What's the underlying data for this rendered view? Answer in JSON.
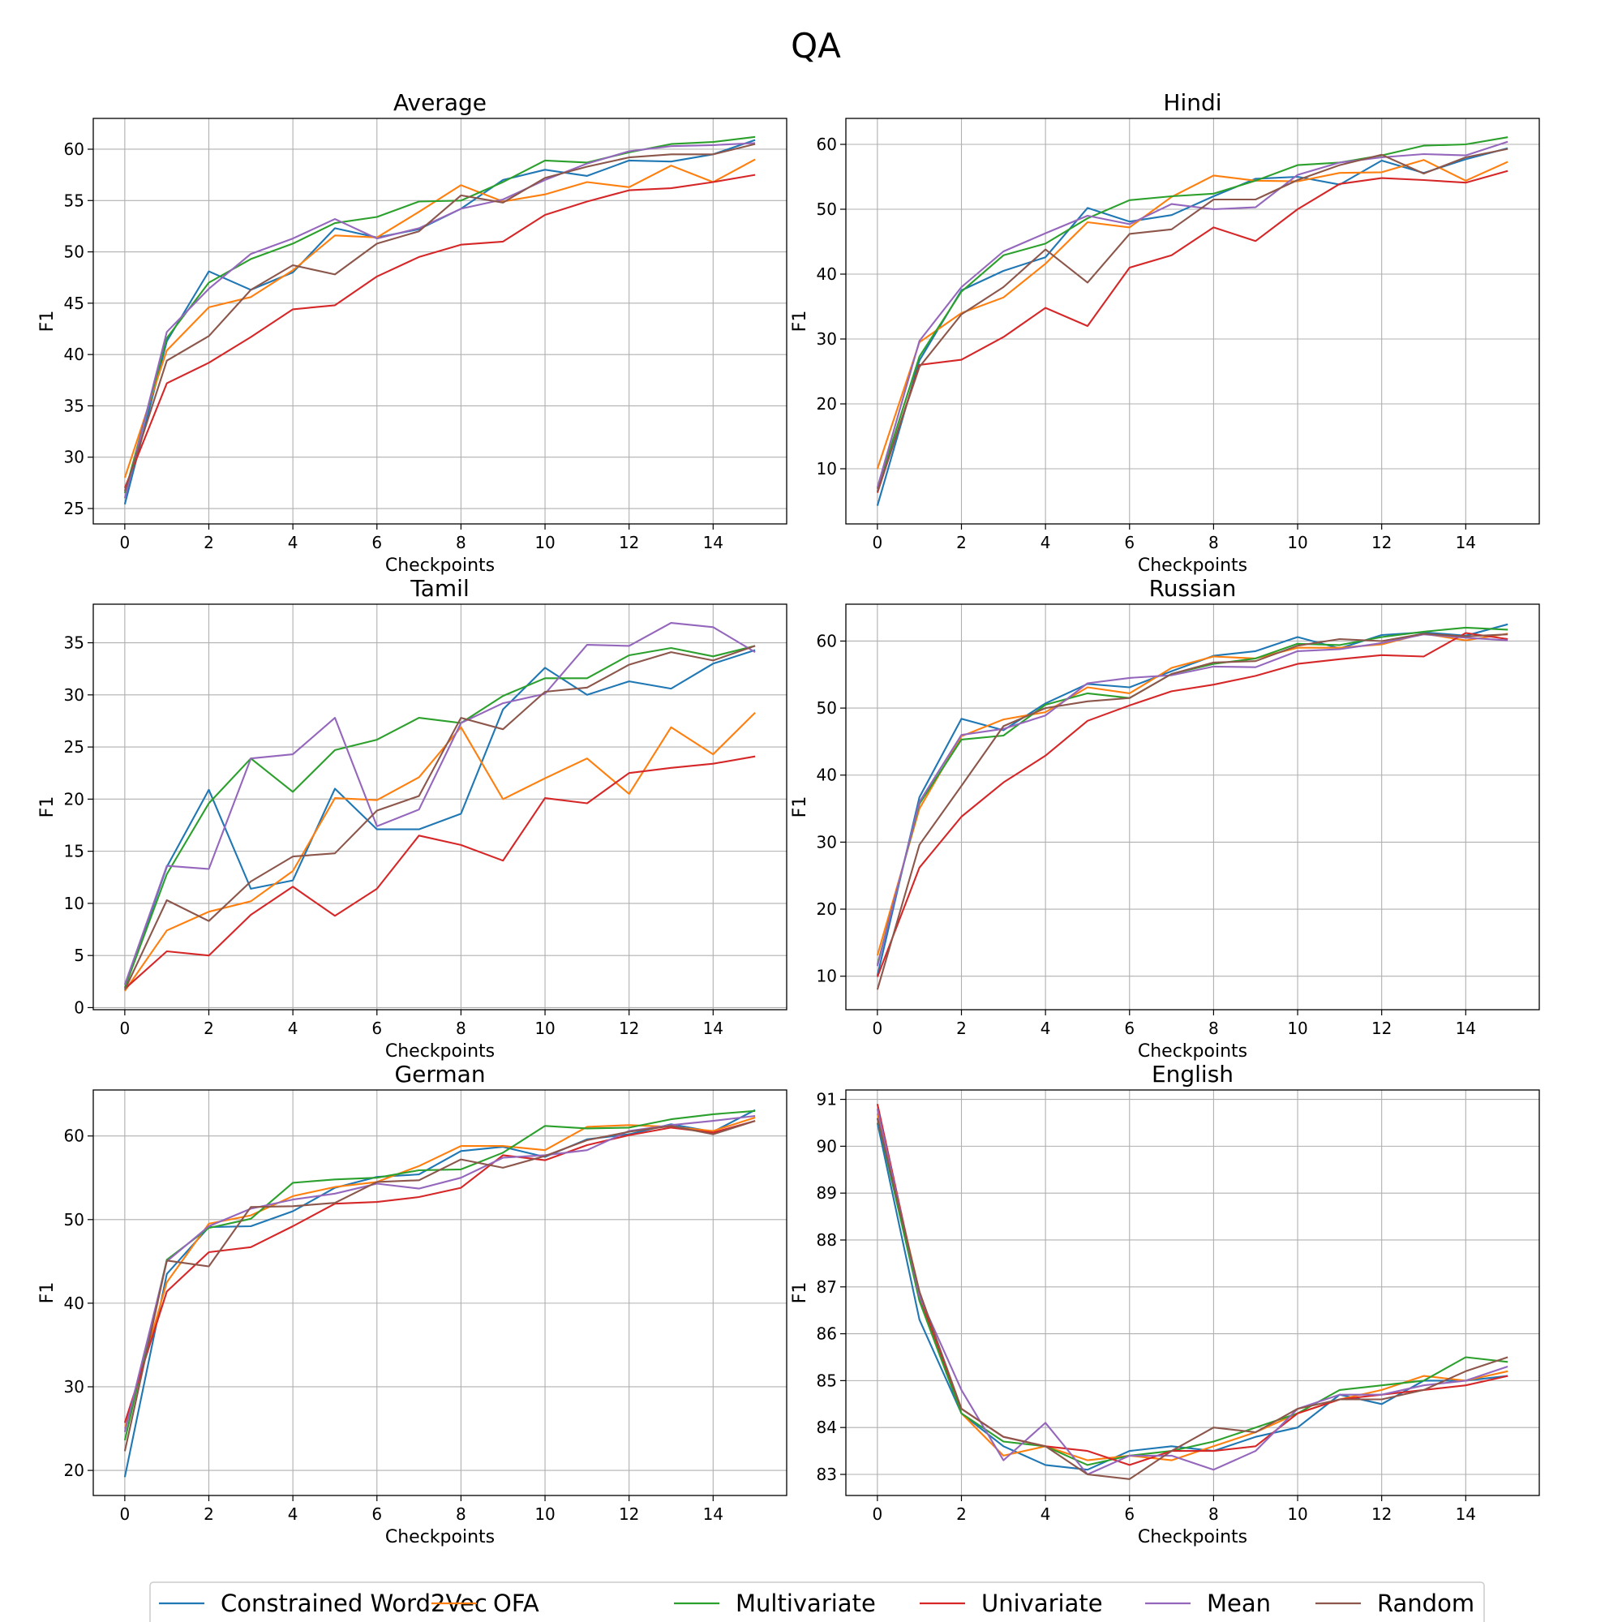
{
  "figure": {
    "title": "QA"
  },
  "legend": [
    {
      "name": "Constrained Word2Vec",
      "color": "#1f77b4"
    },
    {
      "name": "OFA",
      "color": "#ff7f0e"
    },
    {
      "name": "Multivariate",
      "color": "#2ca02c"
    },
    {
      "name": "Univariate",
      "color": "#d62728"
    },
    {
      "name": "Mean",
      "color": "#9467bd"
    },
    {
      "name": "Random",
      "color": "#8c564b"
    }
  ],
  "chart_data": [
    {
      "type": "line",
      "title": "Average",
      "xlabel": "Checkpoints",
      "ylabel": "F1",
      "x": [
        0,
        1,
        2,
        3,
        4,
        5,
        6,
        7,
        8,
        9,
        10,
        11,
        12,
        13,
        14,
        15
      ],
      "xlim": [
        -0.75,
        15.75
      ],
      "ylim": [
        23.5,
        63.0
      ],
      "xticks": [
        0,
        2,
        4,
        6,
        8,
        10,
        12,
        14
      ],
      "yticks": [
        25,
        30,
        35,
        40,
        45,
        50,
        55,
        60
      ],
      "series": [
        {
          "name": "Constrained Word2Vec",
          "values": [
            25.4,
            41.3,
            48.1,
            46.3,
            48.0,
            52.3,
            51.4,
            52.2,
            54.2,
            57.0,
            58.0,
            57.4,
            58.9,
            58.8,
            59.5,
            60.9
          ]
        },
        {
          "name": "OFA",
          "values": [
            28.0,
            40.4,
            44.6,
            45.6,
            48.2,
            51.6,
            51.4,
            53.9,
            56.5,
            54.9,
            55.6,
            56.8,
            56.3,
            58.4,
            56.8,
            59.0
          ]
        },
        {
          "name": "Multivariate",
          "values": [
            26.5,
            41.6,
            47.0,
            49.3,
            50.8,
            52.8,
            53.4,
            54.9,
            55.0,
            56.8,
            58.9,
            58.7,
            59.7,
            60.5,
            60.7,
            61.2
          ]
        },
        {
          "name": "Univariate",
          "values": [
            27.0,
            37.2,
            39.2,
            41.7,
            44.4,
            44.8,
            47.6,
            49.5,
            50.7,
            51.0,
            53.6,
            54.9,
            56.0,
            56.2,
            56.8,
            57.5
          ]
        },
        {
          "name": "Mean",
          "values": [
            26.0,
            42.2,
            46.4,
            49.8,
            51.3,
            53.2,
            51.3,
            52.3,
            54.2,
            55.1,
            57.0,
            58.6,
            59.8,
            60.3,
            60.4,
            60.6
          ]
        },
        {
          "name": "Random",
          "values": [
            26.7,
            39.4,
            41.8,
            46.3,
            48.7,
            47.8,
            50.8,
            52.0,
            55.5,
            54.8,
            57.2,
            58.3,
            59.2,
            59.5,
            59.5,
            60.5
          ]
        }
      ]
    },
    {
      "type": "line",
      "title": "Hindi",
      "xlabel": "Checkpoints",
      "ylabel": "F1",
      "x": [
        0,
        1,
        2,
        3,
        4,
        5,
        6,
        7,
        8,
        9,
        10,
        11,
        12,
        13,
        14,
        15
      ],
      "xlim": [
        -0.75,
        15.75
      ],
      "ylim": [
        1.5,
        64.0
      ],
      "xticks": [
        0,
        2,
        4,
        6,
        8,
        10,
        12,
        14
      ],
      "yticks": [
        10,
        20,
        30,
        40,
        50,
        60
      ],
      "series": [
        {
          "name": "Constrained Word2Vec",
          "values": [
            4.3,
            26.7,
            37.5,
            40.5,
            42.6,
            50.2,
            48.1,
            49.1,
            52.0,
            54.7,
            55.0,
            53.8,
            57.5,
            55.6,
            57.7,
            59.4
          ]
        },
        {
          "name": "OFA",
          "values": [
            10.0,
            29.5,
            34.0,
            36.4,
            41.6,
            48.0,
            47.2,
            51.9,
            55.2,
            54.4,
            54.3,
            55.6,
            55.7,
            57.6,
            54.4,
            57.3
          ]
        },
        {
          "name": "Multivariate",
          "values": [
            6.9,
            27.3,
            37.3,
            42.9,
            44.7,
            48.6,
            51.4,
            52.0,
            52.4,
            54.4,
            56.8,
            57.2,
            58.3,
            59.8,
            60.0,
            61.1
          ]
        },
        {
          "name": "Univariate",
          "values": [
            6.3,
            26.0,
            26.8,
            30.3,
            34.8,
            32.0,
            41.0,
            42.9,
            47.2,
            45.1,
            50.0,
            53.9,
            54.8,
            54.5,
            54.1,
            55.9
          ]
        },
        {
          "name": "Mean",
          "values": [
            7.1,
            29.7,
            38.0,
            43.5,
            46.3,
            49.0,
            47.7,
            50.8,
            50.0,
            50.3,
            55.3,
            57.2,
            58.0,
            58.5,
            58.3,
            60.4
          ]
        },
        {
          "name": "Random",
          "values": [
            6.5,
            25.7,
            33.8,
            38.0,
            43.8,
            38.7,
            46.2,
            46.9,
            51.5,
            51.5,
            54.5,
            56.8,
            58.4,
            55.5,
            58.0,
            59.3
          ]
        }
      ]
    },
    {
      "type": "line",
      "title": "Tamil",
      "xlabel": "Checkpoints",
      "ylabel": "F1",
      "x": [
        0,
        1,
        2,
        3,
        4,
        5,
        6,
        7,
        8,
        9,
        10,
        11,
        12,
        13,
        14,
        15
      ],
      "xlim": [
        -0.75,
        15.75
      ],
      "ylim": [
        -0.2,
        38.7
      ],
      "xticks": [
        0,
        2,
        4,
        6,
        8,
        10,
        12,
        14
      ],
      "yticks": [
        0,
        5,
        10,
        15,
        20,
        25,
        30,
        35
      ],
      "series": [
        {
          "name": "Constrained Word2Vec",
          "values": [
            1.9,
            13.5,
            20.9,
            11.4,
            12.2,
            21.0,
            17.1,
            17.1,
            18.6,
            28.6,
            32.6,
            30.0,
            31.3,
            30.6,
            33.0,
            34.3
          ]
        },
        {
          "name": "OFA",
          "values": [
            1.6,
            7.4,
            9.2,
            10.2,
            13.1,
            20.1,
            19.9,
            22.1,
            26.9,
            20.0,
            22.0,
            23.9,
            20.5,
            26.9,
            24.3,
            28.3
          ]
        },
        {
          "name": "Multivariate",
          "values": [
            1.9,
            12.8,
            19.6,
            23.9,
            20.7,
            24.7,
            25.7,
            27.8,
            27.3,
            29.9,
            31.6,
            31.6,
            33.8,
            34.5,
            33.7,
            34.7
          ]
        },
        {
          "name": "Univariate",
          "values": [
            1.8,
            5.4,
            5.0,
            8.9,
            11.6,
            8.8,
            11.4,
            16.5,
            15.6,
            14.1,
            20.1,
            19.6,
            22.5,
            23.0,
            23.4,
            24.1
          ]
        },
        {
          "name": "Mean",
          "values": [
            2.2,
            13.6,
            13.3,
            23.9,
            24.3,
            27.8,
            17.4,
            19.0,
            27.3,
            29.2,
            30.1,
            34.8,
            34.7,
            36.9,
            36.5,
            34.1
          ]
        },
        {
          "name": "Random",
          "values": [
            1.7,
            10.3,
            8.3,
            12.1,
            14.5,
            14.8,
            18.9,
            20.3,
            27.8,
            26.7,
            30.3,
            30.7,
            32.9,
            34.1,
            33.3,
            34.7
          ]
        }
      ]
    },
    {
      "type": "line",
      "title": "Russian",
      "xlabel": "Checkpoints",
      "ylabel": "F1",
      "x": [
        0,
        1,
        2,
        3,
        4,
        5,
        6,
        7,
        8,
        9,
        10,
        11,
        12,
        13,
        14,
        15
      ],
      "xlim": [
        -0.75,
        15.75
      ],
      "ylim": [
        5.0,
        65.5
      ],
      "xticks": [
        0,
        2,
        4,
        6,
        8,
        10,
        12,
        14
      ],
      "yticks": [
        10,
        20,
        30,
        40,
        50,
        60
      ],
      "series": [
        {
          "name": "Constrained Word2Vec",
          "values": [
            10.1,
            36.7,
            48.4,
            46.7,
            50.7,
            53.6,
            53.1,
            55.5,
            57.8,
            58.5,
            60.6,
            58.9,
            60.9,
            61.3,
            60.8,
            62.5
          ]
        },
        {
          "name": "OFA",
          "values": [
            13.1,
            35.0,
            45.8,
            48.3,
            49.4,
            53.1,
            52.2,
            56.0,
            57.7,
            57.4,
            59.0,
            59.0,
            59.5,
            61.1,
            60.1,
            61.1
          ]
        },
        {
          "name": "Multivariate",
          "values": [
            11.7,
            35.7,
            45.3,
            45.9,
            50.5,
            52.2,
            51.5,
            55.1,
            56.6,
            57.4,
            59.6,
            59.4,
            60.6,
            61.4,
            62.0,
            61.7
          ]
        },
        {
          "name": "Univariate",
          "values": [
            9.9,
            26.2,
            33.8,
            38.9,
            42.9,
            48.1,
            50.4,
            52.5,
            53.5,
            54.8,
            56.6,
            57.3,
            57.9,
            57.7,
            61.2,
            60.3
          ]
        },
        {
          "name": "Mean",
          "values": [
            11.5,
            36.0,
            46.0,
            46.9,
            48.9,
            53.7,
            54.5,
            54.9,
            56.2,
            56.1,
            58.5,
            58.8,
            59.7,
            61.0,
            60.5,
            60.1
          ]
        },
        {
          "name": "Random",
          "values": [
            8.0,
            29.6,
            38.4,
            47.3,
            50.0,
            51.0,
            51.5,
            55.1,
            56.8,
            57.0,
            59.3,
            60.3,
            60.0,
            61.1,
            60.7,
            61.0
          ]
        }
      ]
    },
    {
      "type": "line",
      "title": "German",
      "xlabel": "Checkpoints",
      "ylabel": "F1",
      "x": [
        0,
        1,
        2,
        3,
        4,
        5,
        6,
        7,
        8,
        9,
        10,
        11,
        12,
        13,
        14,
        15
      ],
      "xlim": [
        -0.75,
        15.75
      ],
      "ylim": [
        17.0,
        65.5
      ],
      "xticks": [
        0,
        2,
        4,
        6,
        8,
        10,
        12,
        14
      ],
      "yticks": [
        20,
        30,
        40,
        50,
        60
      ],
      "series": [
        {
          "name": "Constrained Word2Vec",
          "values": [
            19.2,
            43.5,
            49.1,
            49.2,
            51.0,
            53.8,
            55.1,
            55.4,
            58.2,
            58.7,
            57.5,
            59.6,
            60.2,
            61.4,
            60.5,
            63.1
          ]
        },
        {
          "name": "OFA",
          "values": [
            25.0,
            42.5,
            49.5,
            50.5,
            52.8,
            53.9,
            54.5,
            56.4,
            58.8,
            58.8,
            58.3,
            61.1,
            61.3,
            61.1,
            60.6,
            62.2
          ]
        },
        {
          "name": "Multivariate",
          "values": [
            23.6,
            45.2,
            49.0,
            50.1,
            54.4,
            54.8,
            55.0,
            55.9,
            56.0,
            58.0,
            61.2,
            60.9,
            61.0,
            62.0,
            62.6,
            63.0
          ]
        },
        {
          "name": "Univariate",
          "values": [
            25.7,
            41.4,
            46.1,
            46.7,
            49.2,
            51.9,
            52.1,
            52.7,
            53.8,
            57.7,
            57.1,
            58.9,
            60.1,
            61.0,
            60.4,
            61.8
          ]
        },
        {
          "name": "Mean",
          "values": [
            24.6,
            45.0,
            49.2,
            51.3,
            52.4,
            53.1,
            54.3,
            53.7,
            55.0,
            57.4,
            57.7,
            58.3,
            60.6,
            61.3,
            61.8,
            62.4
          ]
        },
        {
          "name": "Random",
          "values": [
            22.3,
            45.1,
            44.4,
            51.5,
            51.6,
            52.0,
            54.5,
            54.7,
            57.2,
            56.2,
            57.6,
            59.5,
            60.5,
            61.2,
            60.2,
            61.8
          ]
        }
      ]
    },
    {
      "type": "line",
      "title": "English",
      "xlabel": "Checkpoints",
      "ylabel": "F1",
      "x": [
        0,
        1,
        2,
        3,
        4,
        5,
        6,
        7,
        8,
        9,
        10,
        11,
        12,
        13,
        14,
        15
      ],
      "xlim": [
        -0.75,
        15.75
      ],
      "ylim": [
        82.55,
        91.2
      ],
      "xticks": [
        0,
        2,
        4,
        6,
        8,
        10,
        12,
        14
      ],
      "yticks": [
        83,
        84,
        85,
        86,
        87,
        88,
        89,
        90,
        91
      ],
      "series": [
        {
          "name": "Constrained Word2Vec",
          "values": [
            90.5,
            86.3,
            84.3,
            83.6,
            83.2,
            83.1,
            83.5,
            83.6,
            83.5,
            83.8,
            84.0,
            84.7,
            84.5,
            85.0,
            85.0,
            85.1
          ]
        },
        {
          "name": "OFA",
          "values": [
            90.7,
            86.9,
            84.3,
            83.4,
            83.6,
            83.3,
            83.4,
            83.3,
            83.6,
            83.9,
            84.3,
            84.6,
            84.8,
            85.1,
            85.0,
            85.2
          ]
        },
        {
          "name": "Multivariate",
          "values": [
            90.6,
            86.7,
            84.3,
            83.7,
            83.6,
            83.2,
            83.4,
            83.5,
            83.7,
            84.0,
            84.3,
            84.8,
            84.9,
            85.0,
            85.5,
            85.4
          ]
        },
        {
          "name": "Univariate",
          "values": [
            90.9,
            86.8,
            84.4,
            83.8,
            83.6,
            83.5,
            83.2,
            83.5,
            83.5,
            83.6,
            84.3,
            84.6,
            84.7,
            84.8,
            84.9,
            85.1
          ]
        },
        {
          "name": "Mean",
          "values": [
            90.8,
            86.8,
            84.8,
            83.3,
            84.1,
            83.0,
            83.4,
            83.4,
            83.1,
            83.5,
            84.4,
            84.7,
            84.7,
            84.9,
            85.0,
            85.3
          ]
        },
        {
          "name": "Random",
          "values": [
            90.6,
            86.9,
            84.4,
            83.8,
            83.6,
            83.0,
            82.9,
            83.5,
            84.0,
            83.9,
            84.4,
            84.6,
            84.6,
            84.8,
            85.2,
            85.5
          ]
        }
      ]
    }
  ]
}
